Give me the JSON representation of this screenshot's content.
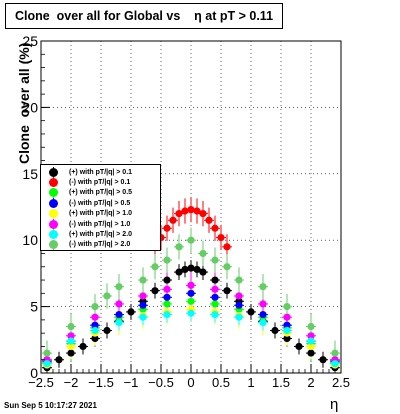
{
  "title": "Clone  over all for Global vs    η at pT > 0.11",
  "timestamp": "Sun Sep  5 10:17:27 2021",
  "chart_data": {
    "type": "scatter",
    "title": "Clone  over all for Global vs    η at pT > 0.11",
    "xlabel": "η",
    "ylabel": "Clone  over all (%)",
    "xlim": [
      -2.5,
      2.5
    ],
    "ylim": [
      0,
      25
    ],
    "xticks": [
      "−2.5",
      "−2",
      "−1.5",
      "−1",
      "−0.5",
      "0",
      "0.5",
      "1",
      "1.5",
      "2",
      "2.5"
    ],
    "yticks": [
      "0",
      "5",
      "10",
      "15",
      "20",
      "25"
    ],
    "grid": true,
    "legend_position": "left-middle",
    "series": [
      {
        "name": "(+) with pT/|q| > 0.1",
        "color": "#000000",
        "x": [
          -2.4,
          -2.2,
          -2.0,
          -1.8,
          -1.6,
          -1.4,
          -1.2,
          -1.0,
          -0.8,
          -0.6,
          -0.4,
          -0.2,
          -0.1,
          0.0,
          0.1,
          0.2,
          0.4,
          0.6,
          0.8,
          1.0,
          1.2,
          1.4,
          1.6,
          1.8,
          2.0,
          2.2,
          2.4
        ],
        "y": [
          0.4,
          1.0,
          1.5,
          2.0,
          2.6,
          3.2,
          3.9,
          4.6,
          5.4,
          6.2,
          7.0,
          7.6,
          7.8,
          7.9,
          7.8,
          7.6,
          7.0,
          6.2,
          5.4,
          4.6,
          3.9,
          3.2,
          2.6,
          2.0,
          1.5,
          1.0,
          0.4
        ]
      },
      {
        "name": "(-) with pT/|q| > 0.1",
        "color": "#ff0000",
        "x": [
          -0.6,
          -0.5,
          -0.4,
          -0.3,
          -0.2,
          -0.1,
          0.0,
          0.1,
          0.2,
          0.3,
          0.4,
          0.5,
          0.6
        ],
        "y": [
          9.5,
          10.2,
          10.9,
          11.5,
          12.0,
          12.2,
          12.3,
          12.2,
          12.0,
          11.5,
          10.9,
          10.2,
          9.5
        ]
      },
      {
        "name": "(+) with pT/|q| > 0.5",
        "color": "#00ff00",
        "x": [
          -2.4,
          -2.0,
          -1.6,
          -1.2,
          -0.8,
          -0.4,
          0.0,
          0.4,
          0.8,
          1.2,
          1.6,
          2.0,
          2.4
        ],
        "y": [
          0.8,
          2.2,
          3.4,
          4.2,
          4.8,
          5.2,
          5.4,
          5.2,
          4.8,
          4.2,
          3.4,
          2.2,
          0.8
        ]
      },
      {
        "name": "(-) with pT/|q| > 0.5",
        "color": "#0000ff",
        "x": [
          -2.4,
          -2.0,
          -1.6,
          -1.2,
          -0.8,
          -0.4,
          0.0,
          0.4,
          0.8,
          1.2,
          1.6,
          2.0,
          2.4
        ],
        "y": [
          0.9,
          2.4,
          3.6,
          4.4,
          5.1,
          5.7,
          6.0,
          5.7,
          5.1,
          4.4,
          3.6,
          2.4,
          0.9
        ]
      },
      {
        "name": "(+) with pT/|q| > 1.0",
        "color": "#ffff00",
        "x": [
          -2.4,
          -2.0,
          -1.6,
          -1.2,
          -0.8,
          -0.4,
          0.0,
          0.4,
          0.8,
          1.2,
          1.6,
          2.0,
          2.4
        ],
        "y": [
          0.6,
          2.0,
          3.0,
          3.8,
          4.3,
          4.6,
          4.8,
          4.6,
          4.3,
          3.8,
          3.0,
          2.0,
          0.6
        ]
      },
      {
        "name": "(-) with pT/|q| > 1.0",
        "color": "#ff00ff",
        "x": [
          -2.4,
          -2.0,
          -1.6,
          -1.2,
          -0.8,
          -0.4,
          0.0,
          0.4,
          0.8,
          1.2,
          1.6,
          2.0,
          2.4
        ],
        "y": [
          1.0,
          2.8,
          4.2,
          5.2,
          5.8,
          6.3,
          6.6,
          6.3,
          5.8,
          5.2,
          4.2,
          2.8,
          1.0
        ]
      },
      {
        "name": "(+) with pT/|q| > 2.0",
        "color": "#00ffff",
        "x": [
          -2.4,
          -2.0,
          -1.6,
          -1.2,
          -0.8,
          -0.4,
          0.0,
          0.4,
          0.8,
          1.2,
          1.6,
          2.0,
          2.4
        ],
        "y": [
          0.7,
          2.4,
          3.2,
          3.8,
          4.2,
          4.4,
          4.5,
          4.4,
          4.2,
          3.8,
          3.2,
          2.4,
          0.7
        ]
      },
      {
        "name": "(-) with pT/|q| > 2.0",
        "color": "#66cc66",
        "x": [
          -2.4,
          -2.0,
          -1.6,
          -1.4,
          -1.2,
          -0.8,
          -0.6,
          -0.4,
          -0.2,
          0.0,
          0.2,
          0.4,
          0.6,
          0.8,
          1.2,
          1.6,
          2.0,
          2.4
        ],
        "y": [
          1.5,
          3.5,
          5.0,
          5.8,
          6.5,
          7.0,
          8.0,
          8.5,
          9.5,
          10.0,
          9.0,
          8.5,
          8.0,
          7.0,
          6.5,
          5.0,
          3.5,
          1.5
        ]
      }
    ]
  }
}
